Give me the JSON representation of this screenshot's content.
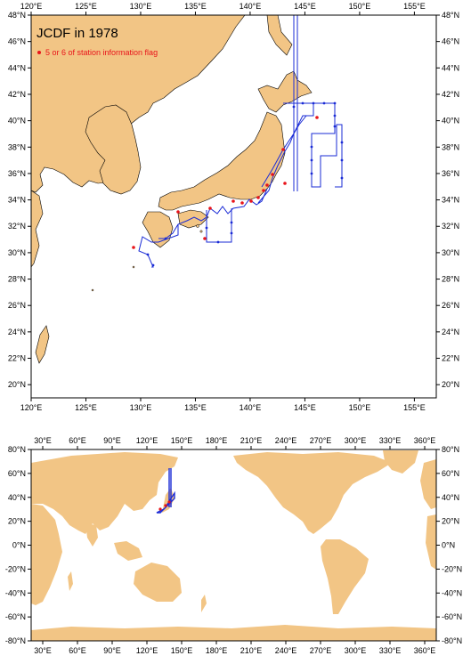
{
  "map_top": {
    "title": "JCDF in 1978",
    "legend_label": "5 or 6 of station information flag",
    "lon_ticks": [
      "120°E",
      "125°E",
      "130°E",
      "135°E",
      "140°E",
      "145°E",
      "150°E",
      "155°E"
    ],
    "lat_ticks": [
      "48°N",
      "46°N",
      "44°N",
      "42°N",
      "40°N",
      "38°N",
      "36°N",
      "34°N",
      "32°N",
      "30°N",
      "28°N",
      "26°N",
      "24°N",
      "22°N",
      "20°N"
    ],
    "extent": {
      "lon": [
        120,
        157
      ],
      "lat": [
        19,
        48
      ]
    }
  },
  "map_bottom": {
    "lon_ticks": [
      "30°E",
      "60°E",
      "90°E",
      "120°E",
      "150°E",
      "180°E",
      "210°E",
      "240°E",
      "270°E",
      "300°E",
      "330°E",
      "360°E"
    ],
    "lat_ticks": [
      "80°N",
      "60°N",
      "40°N",
      "20°N",
      "0°N",
      "-20°N",
      "-40°N",
      "-60°N",
      "-80°N"
    ],
    "extent": {
      "lon": [
        20,
        370
      ],
      "lat": [
        -80,
        80
      ]
    }
  },
  "colors": {
    "land": "#F2C585",
    "sea": "#FFFFFF",
    "track": "#1A2BD6",
    "flag": "#E8141A",
    "coast": "#000000"
  }
}
